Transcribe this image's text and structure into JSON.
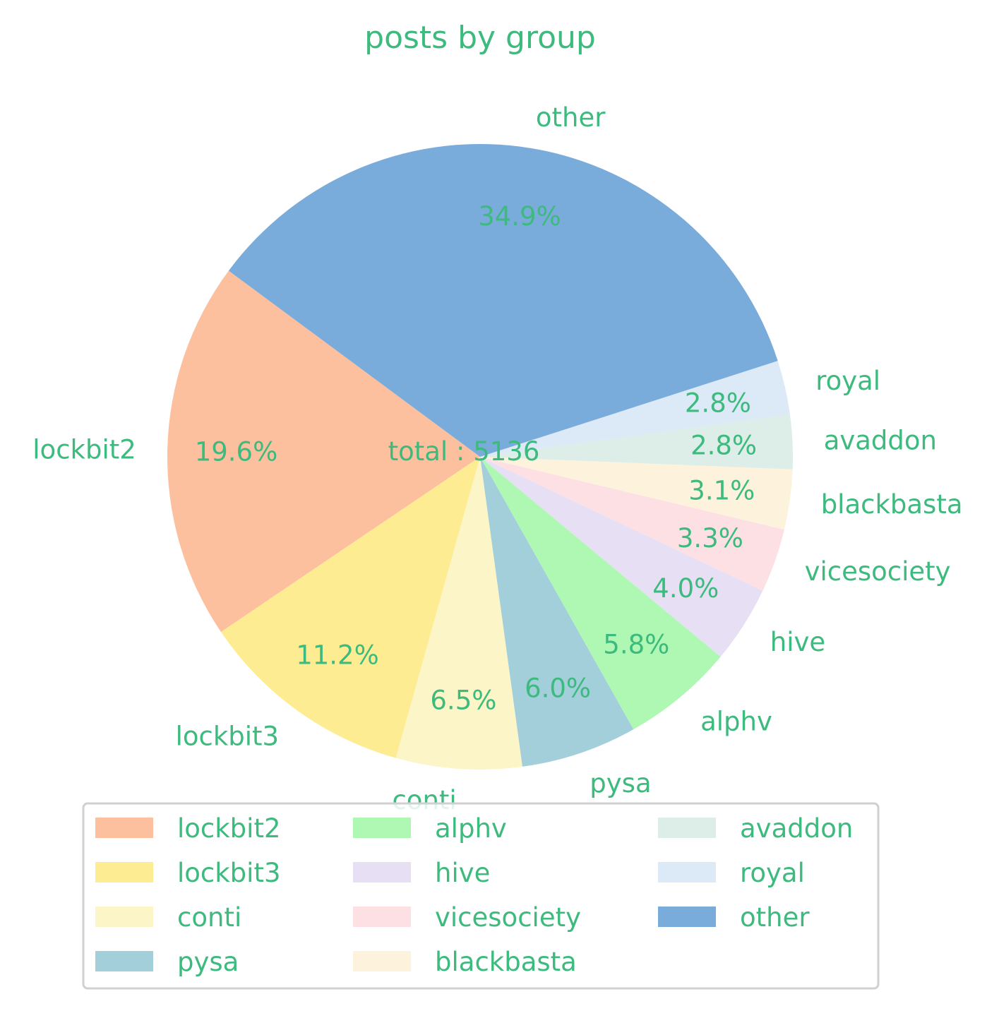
{
  "chart_data": {
    "type": "pie",
    "title": "posts by group",
    "center_label": "total : 5136",
    "text_color": "#3dba7e",
    "slices": [
      {
        "label": "lockbit2",
        "pct_label": "19.6%",
        "value": 19.6,
        "color": "#fdc09e"
      },
      {
        "label": "lockbit3",
        "pct_label": "11.2%",
        "value": 11.2,
        "color": "#feec93"
      },
      {
        "label": "conti",
        "pct_label": "6.5%",
        "value": 6.5,
        "color": "#fbf5c7"
      },
      {
        "label": "pysa",
        "pct_label": "6.0%",
        "value": 6.0,
        "color": "#a3cfdb"
      },
      {
        "label": "alphv",
        "pct_label": "5.8%",
        "value": 5.8,
        "color": "#aef8b3"
      },
      {
        "label": "hive",
        "pct_label": "4.0%",
        "value": 4.0,
        "color": "#e7dff4"
      },
      {
        "label": "vicesociety",
        "pct_label": "3.3%",
        "value": 3.3,
        "color": "#fde0e4"
      },
      {
        "label": "blackbasta",
        "pct_label": "3.1%",
        "value": 3.1,
        "color": "#fdf3dd"
      },
      {
        "label": "avaddon",
        "pct_label": "2.8%",
        "value": 2.8,
        "color": "#ddede8"
      },
      {
        "label": "royal",
        "pct_label": "2.8%",
        "value": 2.8,
        "color": "#dce9f6"
      },
      {
        "label": "other",
        "pct_label": "34.9%",
        "value": 34.9,
        "color": "#7aacdb"
      }
    ],
    "legend_placement": "bottom-center"
  }
}
